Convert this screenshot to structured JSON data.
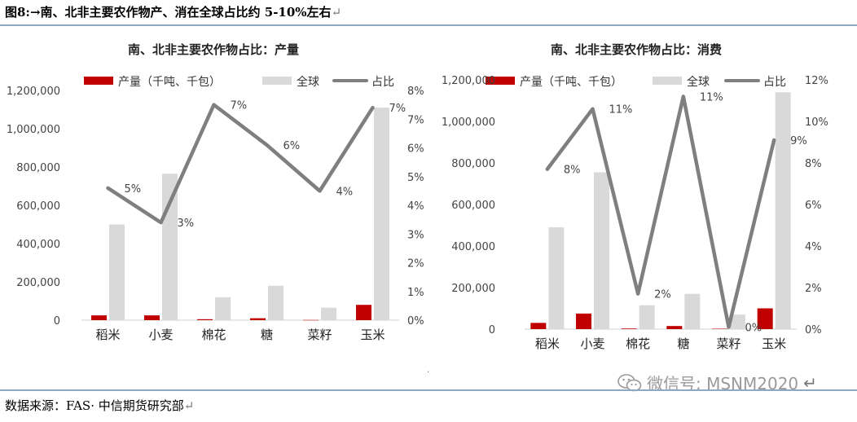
{
  "caption": {
    "text": "图8:→南、北非主要农作物产、消在全球占比约 5-10%左右",
    "return_mark": "↵"
  },
  "source": {
    "text": "数据来源：FAS· 中信期货研究部",
    "return_mark": "↵"
  },
  "watermark": {
    "text": "微信号: MSNM2020",
    "return_mark": "↵",
    "icon": "wechat-icon"
  },
  "colors": {
    "production": "#c00000",
    "global": "#d9d9d9",
    "share": "#7f7f7f",
    "rule": "#8da9c4"
  },
  "chart_data": [
    {
      "type": "bar",
      "title": "南、北非主要农作物占比：产量",
      "categories": [
        "稻米",
        "小麦",
        "棉花",
        "糖",
        "菜籽",
        "玉米"
      ],
      "series": [
        {
          "name": "产量（千吨、千包）",
          "kind": "bar",
          "axis": "left",
          "values": [
            25000,
            25000,
            5000,
            10000,
            1000,
            80000
          ]
        },
        {
          "name": "全球",
          "kind": "bar",
          "axis": "left",
          "values": [
            500000,
            765000,
            120000,
            180000,
            65000,
            1110000
          ]
        },
        {
          "name": "占比",
          "kind": "line",
          "axis": "right",
          "values": [
            4.6,
            3.4,
            7.5,
            6.1,
            4.5,
            7.4
          ],
          "labels": [
            "5%",
            "3%",
            "7%",
            "6%",
            "4%",
            "7%"
          ]
        }
      ],
      "left_axis": {
        "ylim": [
          0,
          1200000
        ],
        "ticks": [
          "0",
          "200,000",
          "400,000",
          "600,000",
          "800,000",
          "1,000,000",
          "1,200,000"
        ]
      },
      "right_axis": {
        "ylim": [
          0,
          8
        ],
        "ticks": [
          "0%",
          "1%",
          "2%",
          "3%",
          "4%",
          "5%",
          "6%",
          "7%",
          "8%"
        ]
      },
      "legend": "top",
      "grid": false
    },
    {
      "type": "bar",
      "title": "南、北非主要农作物占比：消费",
      "categories": [
        "稻米",
        "小麦",
        "棉花",
        "糖",
        "菜籽",
        "玉米"
      ],
      "series": [
        {
          "name": "产量（千吨、千包）",
          "kind": "bar",
          "axis": "left",
          "values": [
            30000,
            75000,
            3000,
            15000,
            2000,
            100000
          ]
        },
        {
          "name": "全球",
          "kind": "bar",
          "axis": "left",
          "values": [
            490000,
            755000,
            115000,
            170000,
            70000,
            1140000
          ]
        },
        {
          "name": "占比",
          "kind": "line",
          "axis": "right",
          "values": [
            7.7,
            10.6,
            1.7,
            11.2,
            0.1,
            9.1
          ],
          "labels": [
            "8%",
            "11%",
            "2%",
            "11%",
            "0%",
            "9%"
          ]
        }
      ],
      "left_axis": {
        "ylim": [
          0,
          1200000
        ],
        "ticks": [
          "0",
          "200,000",
          "400,000",
          "600,000",
          "800,000",
          "1,000,000",
          "1,200,000"
        ]
      },
      "right_axis": {
        "ylim": [
          0,
          12
        ],
        "ticks": [
          "0%",
          "2%",
          "4%",
          "6%",
          "8%",
          "10%",
          "12%"
        ]
      },
      "legend": "top",
      "grid": false
    }
  ]
}
